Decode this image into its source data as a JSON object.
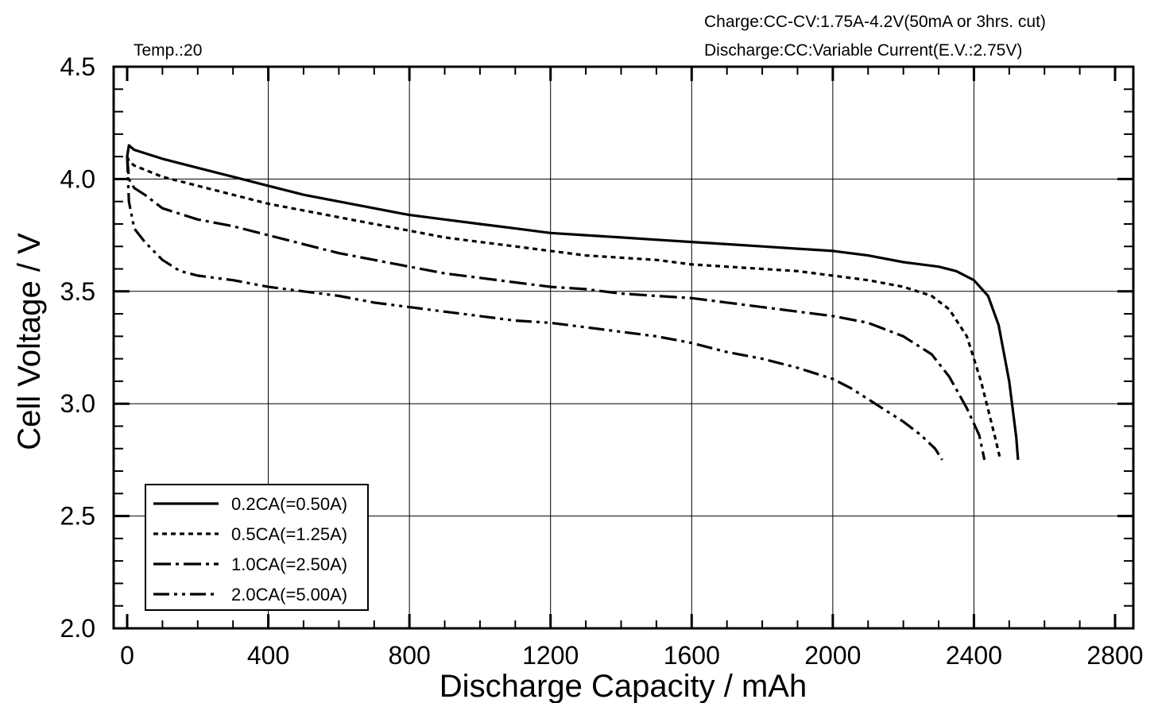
{
  "chart_data": {
    "type": "line",
    "title": "",
    "annotations": {
      "temp": "Temp.:20",
      "charge": "Charge:CC-CV:1.75A-4.2V(50mA  or  3hrs.  cut)",
      "discharge": "Discharge:CC:Variable  Current(E.V.:2.75V)"
    },
    "xlabel": "Discharge  Capacity  /  mAh",
    "ylabel": "Cell  Voltage  /  V",
    "xlim": [
      0,
      2800
    ],
    "ylim": [
      2.0,
      4.5
    ],
    "xticks": [
      "0",
      "400",
      "800",
      "1200",
      "1600",
      "2000",
      "2400",
      "2800"
    ],
    "yticks": [
      "2.0",
      "2.5",
      "3.0",
      "3.5",
      "4.0",
      "4.5"
    ],
    "grid": true,
    "legend_position": "bottom-left",
    "series": [
      {
        "name": "0.2CA(=0.50A)",
        "style": "solid",
        "points": [
          [
            0,
            4.1
          ],
          [
            5,
            4.15
          ],
          [
            20,
            4.13
          ],
          [
            100,
            4.09
          ],
          [
            200,
            4.05
          ],
          [
            300,
            4.01
          ],
          [
            400,
            3.97
          ],
          [
            500,
            3.93
          ],
          [
            600,
            3.9
          ],
          [
            700,
            3.87
          ],
          [
            800,
            3.84
          ],
          [
            900,
            3.82
          ],
          [
            1000,
            3.8
          ],
          [
            1100,
            3.78
          ],
          [
            1200,
            3.76
          ],
          [
            1300,
            3.75
          ],
          [
            1400,
            3.74
          ],
          [
            1500,
            3.73
          ],
          [
            1600,
            3.72
          ],
          [
            1700,
            3.71
          ],
          [
            1800,
            3.7
          ],
          [
            1900,
            3.69
          ],
          [
            2000,
            3.68
          ],
          [
            2100,
            3.66
          ],
          [
            2200,
            3.63
          ],
          [
            2300,
            3.61
          ],
          [
            2350,
            3.59
          ],
          [
            2400,
            3.55
          ],
          [
            2440,
            3.48
          ],
          [
            2470,
            3.35
          ],
          [
            2500,
            3.1
          ],
          [
            2520,
            2.85
          ],
          [
            2525,
            2.75
          ]
        ]
      },
      {
        "name": "0.5CA(=1.25A)",
        "style": "dashed",
        "points": [
          [
            0,
            4.1
          ],
          [
            5,
            4.08
          ],
          [
            20,
            4.06
          ],
          [
            100,
            4.01
          ],
          [
            200,
            3.97
          ],
          [
            300,
            3.93
          ],
          [
            400,
            3.89
          ],
          [
            500,
            3.86
          ],
          [
            600,
            3.83
          ],
          [
            700,
            3.8
          ],
          [
            800,
            3.77
          ],
          [
            900,
            3.74
          ],
          [
            1000,
            3.72
          ],
          [
            1100,
            3.7
          ],
          [
            1200,
            3.68
          ],
          [
            1300,
            3.66
          ],
          [
            1400,
            3.65
          ],
          [
            1500,
            3.64
          ],
          [
            1600,
            3.62
          ],
          [
            1700,
            3.61
          ],
          [
            1800,
            3.6
          ],
          [
            1900,
            3.59
          ],
          [
            2000,
            3.57
          ],
          [
            2100,
            3.55
          ],
          [
            2200,
            3.52
          ],
          [
            2280,
            3.48
          ],
          [
            2330,
            3.42
          ],
          [
            2380,
            3.3
          ],
          [
            2420,
            3.1
          ],
          [
            2460,
            2.85
          ],
          [
            2475,
            2.75
          ]
        ]
      },
      {
        "name": "1.0CA(=2.50A)",
        "style": "dash-dot",
        "points": [
          [
            0,
            4.1
          ],
          [
            5,
            4.0
          ],
          [
            20,
            3.96
          ],
          [
            50,
            3.93
          ],
          [
            100,
            3.87
          ],
          [
            200,
            3.82
          ],
          [
            300,
            3.79
          ],
          [
            400,
            3.75
          ],
          [
            500,
            3.71
          ],
          [
            600,
            3.67
          ],
          [
            700,
            3.64
          ],
          [
            800,
            3.61
          ],
          [
            900,
            3.58
          ],
          [
            1000,
            3.56
          ],
          [
            1100,
            3.54
          ],
          [
            1200,
            3.52
          ],
          [
            1300,
            3.51
          ],
          [
            1400,
            3.49
          ],
          [
            1500,
            3.48
          ],
          [
            1600,
            3.47
          ],
          [
            1700,
            3.45
          ],
          [
            1800,
            3.43
          ],
          [
            1900,
            3.41
          ],
          [
            2000,
            3.39
          ],
          [
            2100,
            3.36
          ],
          [
            2200,
            3.3
          ],
          [
            2280,
            3.22
          ],
          [
            2330,
            3.12
          ],
          [
            2380,
            2.98
          ],
          [
            2415,
            2.86
          ],
          [
            2430,
            2.75
          ]
        ]
      },
      {
        "name": "2.0CA(=5.00A)",
        "style": "dash-dot-dot",
        "points": [
          [
            0,
            4.1
          ],
          [
            5,
            3.9
          ],
          [
            20,
            3.78
          ],
          [
            50,
            3.72
          ],
          [
            100,
            3.64
          ],
          [
            150,
            3.59
          ],
          [
            200,
            3.57
          ],
          [
            300,
            3.55
          ],
          [
            400,
            3.52
          ],
          [
            500,
            3.5
          ],
          [
            600,
            3.48
          ],
          [
            700,
            3.45
          ],
          [
            800,
            3.43
          ],
          [
            900,
            3.41
          ],
          [
            1000,
            3.39
          ],
          [
            1100,
            3.37
          ],
          [
            1200,
            3.36
          ],
          [
            1300,
            3.34
          ],
          [
            1400,
            3.32
          ],
          [
            1500,
            3.3
          ],
          [
            1600,
            3.27
          ],
          [
            1700,
            3.23
          ],
          [
            1800,
            3.2
          ],
          [
            1900,
            3.16
          ],
          [
            2000,
            3.11
          ],
          [
            2050,
            3.07
          ],
          [
            2100,
            3.02
          ],
          [
            2150,
            2.97
          ],
          [
            2200,
            2.92
          ],
          [
            2250,
            2.86
          ],
          [
            2290,
            2.8
          ],
          [
            2310,
            2.75
          ]
        ]
      }
    ]
  }
}
